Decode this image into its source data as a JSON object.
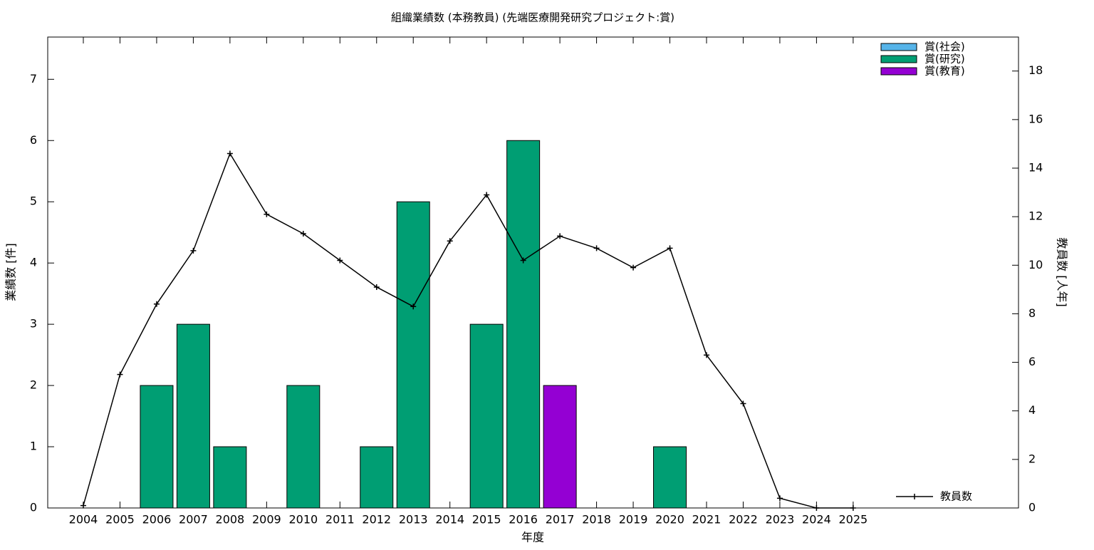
{
  "chart_data": {
    "type": "bar",
    "stacked": true,
    "title": "組織業績数 (本務教員) (先端医療開発研究プロジェクト:賞)",
    "x_label": "年度",
    "y_label": "業績数 [件]",
    "y2_label": "教員数 [人年]",
    "categories": [
      "2004",
      "2005",
      "2006",
      "2007",
      "2008",
      "2009",
      "2010",
      "2011",
      "2012",
      "2013",
      "2014",
      "2015",
      "2016",
      "2017",
      "2018",
      "2019",
      "2020",
      "2021",
      "2022",
      "2023",
      "2024",
      "2025"
    ],
    "series": [
      {
        "name": "賞(社会)",
        "color": "#56b4e9",
        "type": "bar",
        "values": [
          0,
          0,
          0,
          0,
          0,
          0,
          0,
          0,
          0,
          0,
          0,
          0,
          0,
          0,
          0,
          0,
          0,
          0,
          0,
          0,
          0,
          0
        ]
      },
      {
        "name": "賞(研究)",
        "color": "#009e73",
        "type": "bar",
        "values": [
          0,
          0,
          2,
          3,
          1,
          0,
          2,
          0,
          1,
          5,
          0,
          3,
          6,
          0,
          0,
          0,
          1,
          0,
          0,
          0,
          0,
          0
        ]
      },
      {
        "name": "賞(教育)",
        "color": "#9400d3",
        "type": "bar",
        "values": [
          0,
          0,
          0,
          0,
          0,
          0,
          0,
          0,
          0,
          0,
          0,
          0,
          0,
          2,
          0,
          0,
          0,
          0,
          0,
          0,
          0,
          0
        ]
      },
      {
        "name": "教員数",
        "color": "#000000",
        "type": "line",
        "axis": "y2",
        "values": [
          0.1,
          5.5,
          8.4,
          10.6,
          14.6,
          12.1,
          11.3,
          10.2,
          9.1,
          8.3,
          11.0,
          12.9,
          10.2,
          11.2,
          10.7,
          9.9,
          10.7,
          6.3,
          4.3,
          0.4,
          0,
          0
        ]
      }
    ],
    "ylim": [
      0,
      7.69
    ],
    "yticks": [
      0,
      1,
      2,
      3,
      4,
      5,
      6,
      7
    ],
    "y2lim": [
      0,
      19.4
    ],
    "y2ticks": [
      0,
      2,
      4,
      6,
      8,
      10,
      12,
      14,
      16,
      18
    ],
    "legend": "top-right"
  }
}
